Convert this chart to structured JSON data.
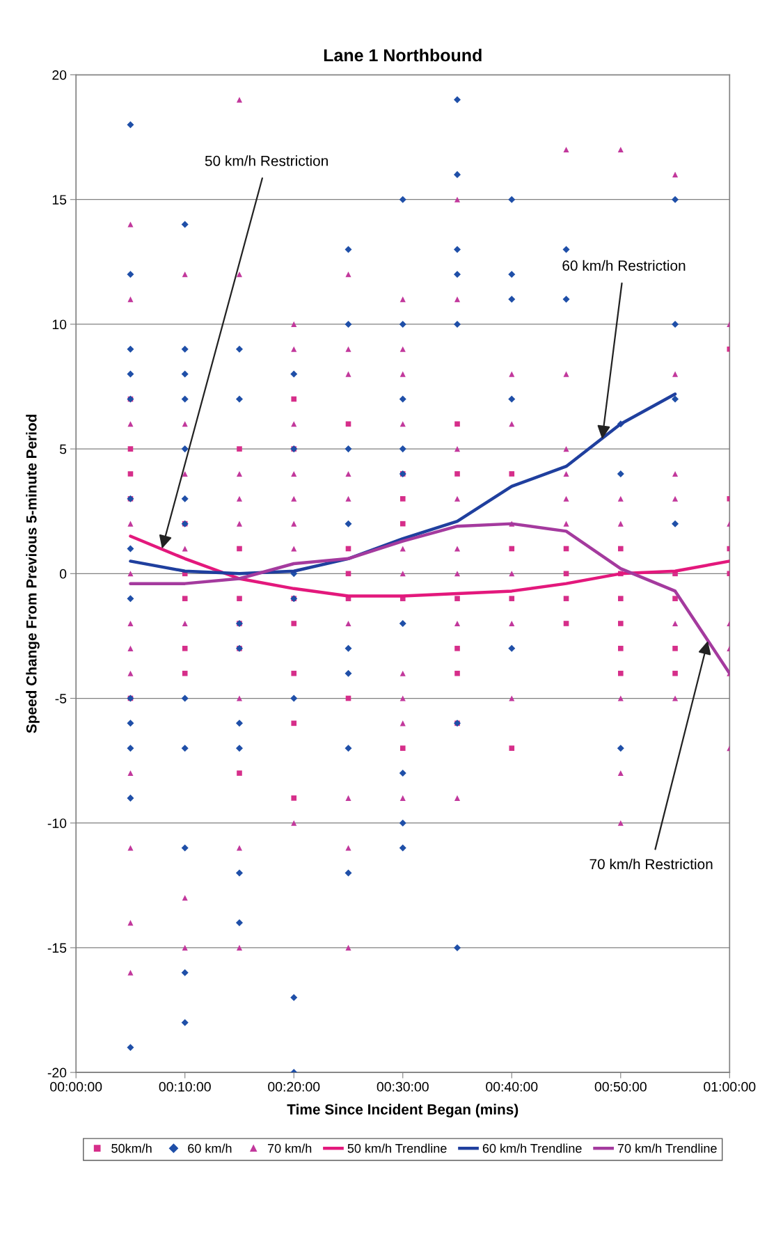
{
  "chart_data": {
    "type": "scatter",
    "title": "Lane 1 Northbound",
    "xlabel": "Time Since Incident Began (mins)",
    "ylabel": "Speed Change From Previous 5-minute Period",
    "xlim": [
      0,
      60
    ],
    "xticks": [
      {
        "value": 0,
        "label": "00:00:00"
      },
      {
        "value": 10,
        "label": "00:10:00"
      },
      {
        "value": 20,
        "label": "00:20:00"
      },
      {
        "value": 30,
        "label": "00:30:00"
      },
      {
        "value": 40,
        "label": "00:40:00"
      },
      {
        "value": 50,
        "label": "00:50:00"
      },
      {
        "value": 60,
        "label": "01:00:00"
      }
    ],
    "ylim": [
      -20,
      20
    ],
    "yticks": [
      -20,
      -15,
      -10,
      -5,
      0,
      5,
      10,
      15,
      20
    ],
    "grid": "y",
    "legend": "bottom",
    "series": [
      {
        "name": "50km/h",
        "marker": "square",
        "color": "#d62e8a",
        "x": [
          5,
          5,
          5,
          5,
          5,
          10,
          10,
          10,
          10,
          10,
          15,
          15,
          15,
          15,
          15,
          15,
          20,
          20,
          20,
          20,
          20,
          20,
          20,
          25,
          25,
          25,
          25,
          25,
          30,
          30,
          30,
          30,
          30,
          35,
          35,
          35,
          35,
          35,
          35,
          40,
          40,
          40,
          40,
          45,
          45,
          45,
          45,
          50,
          50,
          50,
          50,
          50,
          50,
          55,
          55,
          55,
          55,
          60,
          60,
          60,
          60
        ],
        "values": [
          7,
          5,
          4,
          3,
          -5,
          2,
          0,
          -1,
          -3,
          -4,
          5,
          1,
          -1,
          -2,
          -3,
          -8,
          7,
          5,
          -1,
          -2,
          -4,
          -6,
          -9,
          6,
          1,
          0,
          -1,
          -5,
          4,
          3,
          2,
          -1,
          -7,
          6,
          4,
          -1,
          -3,
          -4,
          -6,
          4,
          1,
          -1,
          -7,
          1,
          0,
          -1,
          -2,
          1,
          0,
          -1,
          -2,
          -3,
          -4,
          0,
          -1,
          -3,
          -4,
          9,
          3,
          1,
          0
        ]
      },
      {
        "name": "60 km/h",
        "marker": "diamond",
        "color": "#1f4fa8",
        "x": [
          5,
          5,
          5,
          5,
          5,
          5,
          5,
          5,
          5,
          5,
          5,
          5,
          5,
          10,
          10,
          10,
          10,
          10,
          10,
          10,
          10,
          10,
          10,
          10,
          10,
          15,
          15,
          15,
          15,
          15,
          15,
          15,
          15,
          20,
          20,
          20,
          20,
          20,
          20,
          20,
          25,
          25,
          25,
          25,
          25,
          25,
          25,
          25,
          30,
          30,
          30,
          30,
          30,
          30,
          30,
          30,
          30,
          35,
          35,
          35,
          35,
          35,
          35,
          35,
          40,
          40,
          40,
          40,
          40,
          45,
          45,
          50,
          50,
          50,
          55,
          55,
          55,
          55
        ],
        "values": [
          18,
          12,
          9,
          8,
          7,
          3,
          1,
          -1,
          -5,
          -6,
          -7,
          -9,
          -19,
          14,
          9,
          8,
          7,
          5,
          3,
          2,
          -5,
          -7,
          -11,
          -16,
          -18,
          9,
          7,
          -2,
          -3,
          -6,
          -7,
          -12,
          -14,
          8,
          5,
          0,
          -1,
          -5,
          -17,
          -20,
          13,
          10,
          5,
          2,
          -3,
          -4,
          -7,
          -12,
          15,
          10,
          7,
          5,
          4,
          -2,
          -8,
          -10,
          -11,
          19,
          16,
          13,
          12,
          10,
          -6,
          -15,
          15,
          12,
          11,
          7,
          -3,
          13,
          11,
          6,
          4,
          -7,
          15,
          10,
          7,
          2
        ]
      },
      {
        "name": "70 km/h",
        "marker": "triangle",
        "color": "#c2389c",
        "x": [
          5,
          5,
          5,
          5,
          5,
          5,
          5,
          5,
          5,
          5,
          5,
          5,
          10,
          10,
          10,
          10,
          10,
          10,
          10,
          15,
          15,
          15,
          15,
          15,
          15,
          15,
          15,
          20,
          20,
          20,
          20,
          20,
          20,
          20,
          20,
          25,
          25,
          25,
          25,
          25,
          25,
          25,
          25,
          25,
          30,
          30,
          30,
          30,
          30,
          30,
          30,
          30,
          30,
          30,
          35,
          35,
          35,
          35,
          35,
          35,
          35,
          35,
          40,
          40,
          40,
          40,
          40,
          40,
          45,
          45,
          45,
          45,
          45,
          45,
          50,
          50,
          50,
          50,
          50,
          50,
          55,
          55,
          55,
          55,
          55,
          55,
          60,
          60,
          60,
          60,
          60,
          60
        ],
        "values": [
          14,
          11,
          6,
          2,
          0,
          -2,
          -3,
          -4,
          -8,
          -11,
          -14,
          -16,
          12,
          6,
          4,
          1,
          -2,
          -13,
          -15,
          19,
          12,
          4,
          3,
          2,
          -5,
          -11,
          -15,
          10,
          9,
          6,
          4,
          3,
          2,
          1,
          -10,
          12,
          9,
          8,
          4,
          3,
          -2,
          -9,
          -11,
          -15,
          11,
          9,
          8,
          6,
          1,
          0,
          -4,
          -5,
          -6,
          -9,
          15,
          11,
          5,
          3,
          1,
          0,
          -2,
          -9,
          8,
          6,
          2,
          0,
          -2,
          -5,
          17,
          8,
          5,
          4,
          3,
          2,
          17,
          3,
          2,
          -5,
          -8,
          -10,
          16,
          8,
          4,
          3,
          -2,
          -5,
          10,
          2,
          -2,
          -3,
          -4,
          -7
        ]
      },
      {
        "name": "50 km/h Trendline",
        "type": "line",
        "marker": "none",
        "color": "#e3187c",
        "x": [
          5,
          10,
          15,
          20,
          25,
          30,
          35,
          40,
          45,
          50,
          55,
          60
        ],
        "values": [
          1.5,
          0.6,
          -0.2,
          -0.6,
          -0.9,
          -0.9,
          -0.8,
          -0.7,
          -0.4,
          0,
          0.1,
          0.5
        ]
      },
      {
        "name": "60 km/h Trendline",
        "type": "line",
        "marker": "none",
        "color": "#1f3f9e",
        "x": [
          5,
          10,
          15,
          20,
          25,
          30,
          35,
          40,
          45,
          50,
          55
        ],
        "values": [
          0.5,
          0.1,
          0,
          0.1,
          0.6,
          1.4,
          2.1,
          3.5,
          4.3,
          6.0,
          7.2
        ]
      },
      {
        "name": "70 km/h Trendline",
        "type": "line",
        "marker": "none",
        "color": "#a43a9e",
        "x": [
          5,
          10,
          15,
          20,
          25,
          30,
          35,
          40,
          45,
          50,
          55,
          60
        ],
        "values": [
          -0.4,
          -0.4,
          -0.2,
          0.4,
          0.6,
          1.3,
          1.9,
          2.0,
          1.7,
          0.2,
          -0.7,
          -4.0
        ]
      }
    ],
    "annotations": [
      {
        "text": "50 km/h Restriction",
        "x": 7.9,
        "y": 1.0
      },
      {
        "text": "60 km/h Restriction",
        "x": 48.3,
        "y": 5.4
      },
      {
        "text": "70 km/h Restriction",
        "x": 58,
        "y": -2.7
      }
    ]
  }
}
